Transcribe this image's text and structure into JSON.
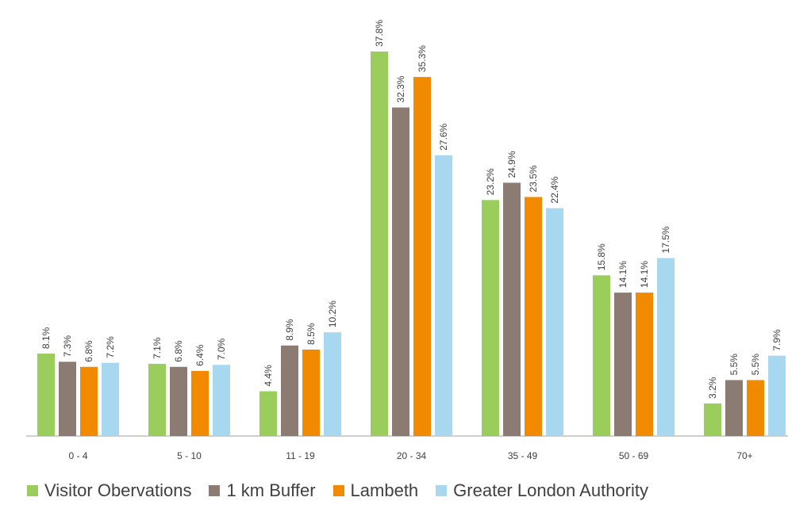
{
  "chart_data": {
    "type": "bar",
    "categories": [
      "0 - 4",
      "5 - 10",
      "11 - 19",
      "20 - 34",
      "35 - 49",
      "50 - 69",
      "70+"
    ],
    "series": [
      {
        "name": "Visitor Obervations",
        "color": "#9ACD5C",
        "values": [
          8.1,
          7.1,
          4.4,
          37.8,
          23.2,
          15.8,
          3.2
        ],
        "labels": [
          "8.1%",
          "7.1%",
          "4.4%",
          "37.8%",
          "23.2%",
          "15.8%",
          "3.2%"
        ]
      },
      {
        "name": "1 km Buffer",
        "color": "#8B7B72",
        "values": [
          7.3,
          6.8,
          8.9,
          32.3,
          24.9,
          14.1,
          5.5
        ],
        "labels": [
          "7.3%",
          "6.8%",
          "8.9%",
          "32.3%",
          "24.9%",
          "14.1%",
          "5.5%"
        ]
      },
      {
        "name": "Lambeth",
        "color": "#F28A00",
        "values": [
          6.8,
          6.4,
          8.5,
          35.3,
          23.5,
          14.1,
          5.5
        ],
        "labels": [
          "6.8%",
          "6.4%",
          "8.5%",
          "35.3%",
          "23.5%",
          "14.1%",
          "5.5%"
        ]
      },
      {
        "name": "Greater London Authority",
        "color": "#A8D8F0",
        "values": [
          7.2,
          7.0,
          10.2,
          27.6,
          22.4,
          17.5,
          7.9
        ],
        "labels": [
          "7.2%",
          "7.0%",
          "10.2%",
          "27.6%",
          "22.4%",
          "17.5%",
          "7.9%"
        ]
      }
    ],
    "title": "",
    "xlabel": "",
    "ylabel": "",
    "ylim": [
      0,
      40
    ],
    "grid": false,
    "legend_position": "bottom",
    "axis_color": "#BFBFBF",
    "text_color": "#404040"
  }
}
